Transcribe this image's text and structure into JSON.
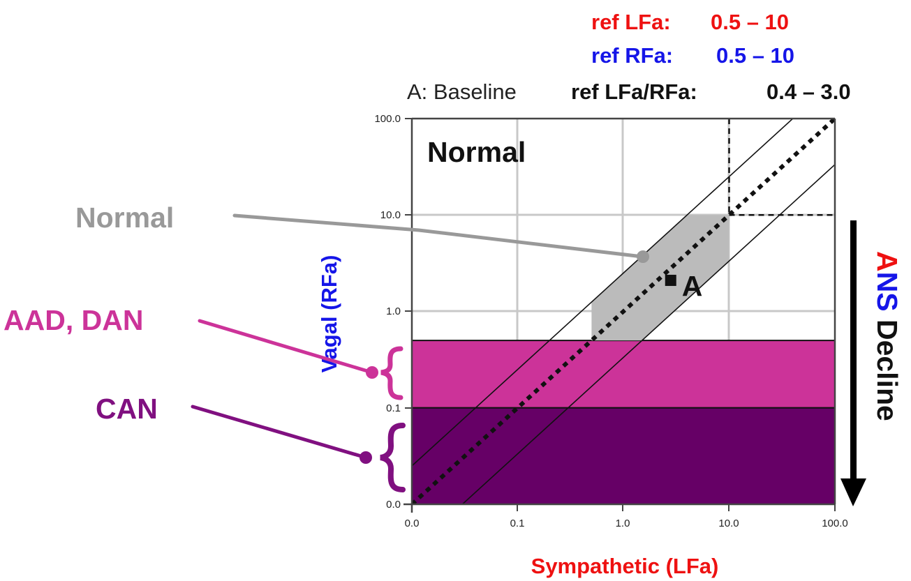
{
  "chart_data": {
    "type": "scatter",
    "x_scale": "log",
    "y_scale": "log",
    "xlabel": "Sympathetic (LFa)",
    "ylabel": "Vagal (RFa)",
    "x_ticks": [
      "0.0",
      "0.1",
      "1.0",
      "10.0",
      "100.0"
    ],
    "y_ticks": [
      "0.0",
      "0.1",
      "1.0",
      "10.0",
      "100.0"
    ],
    "grid": true,
    "title": "A: Baseline",
    "ref_lines": [
      {
        "label": "ref LFa:",
        "range": "0.5 – 10",
        "color": "#ee1111"
      },
      {
        "label": "ref RFa:",
        "range": "0.5 – 10",
        "color": "#1515e8"
      },
      {
        "label": "ref LFa/RFa:",
        "range": "0.4 – 3.0",
        "color": "#111111"
      }
    ],
    "reference_ranges": {
      "lfa": [
        0.5,
        10
      ],
      "rfa": [
        0.5,
        10
      ],
      "ratio": [
        0.4,
        3.0
      ]
    },
    "threshold_lines": {
      "x": 10,
      "y": 10
    },
    "bands": [
      {
        "name": "AAD, DAN",
        "rfa_range": [
          0.1,
          0.5
        ],
        "color": "#cc3399"
      },
      {
        "name": "CAN",
        "rfa_range": [
          0.01,
          0.1
        ],
        "color": "#660066"
      }
    ],
    "normal_region_color": "#bbbbbb",
    "points": [
      {
        "label": "A",
        "x": 2.8,
        "y": 2.1
      }
    ],
    "region_label": "Normal"
  },
  "annotations": {
    "normal": {
      "label": "Normal",
      "color": "#999999"
    },
    "aad_dan": {
      "label": "AAD, DAN",
      "color": "#cc3399"
    },
    "can": {
      "label": "CAN",
      "color": "#801080"
    }
  },
  "side_label": {
    "prefix_a": "A",
    "prefix_n": "N",
    "prefix_s": "S",
    "rest": " Decline",
    "colors": {
      "a": "#ee1111",
      "n": "#1515e8",
      "s": "#1515e8",
      "rest": "#111111"
    }
  }
}
